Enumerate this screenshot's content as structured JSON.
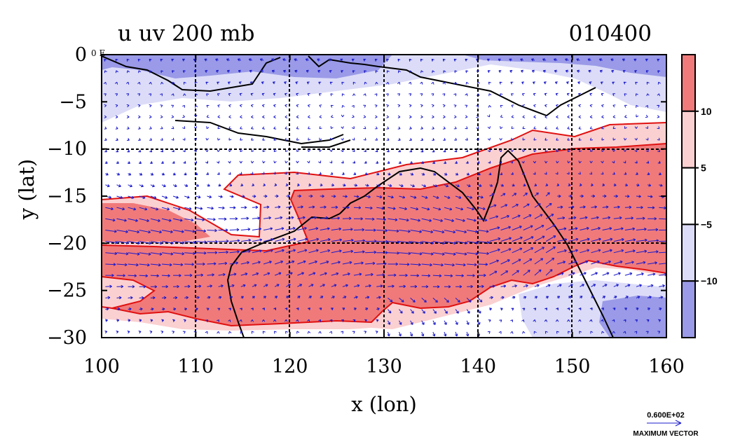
{
  "chart_data": {
    "type": "heatmap",
    "title": "u uv 200 mb",
    "date_label": "010400",
    "xlabel": "x (lon)",
    "ylabel": "y (lat)",
    "xlim": [
      100,
      160
    ],
    "ylim": [
      -30,
      0
    ],
    "x_ticks": [
      100,
      110,
      120,
      130,
      140,
      150,
      160
    ],
    "y_ticks": [
      0,
      -5,
      -10,
      -15,
      -20,
      -25,
      -30
    ],
    "grid": true,
    "colorbar": {
      "levels": [
        -10,
        -5,
        5,
        10
      ],
      "labels": [
        "10",
        "5",
        "-5",
        "-10"
      ],
      "colors": [
        "#f07a7a",
        "#fbd0d0",
        "#ffffff",
        "#dcdcf8",
        "#9a9ae8"
      ]
    },
    "contour_bands": [
      {
        "level": "u > 10",
        "color": "#f07a7a",
        "description": "strong westerly jet band, approx 12S-28S"
      },
      {
        "level": "5 < u < 10",
        "color": "#fbd0d0",
        "description": "jet flanks"
      },
      {
        "level": "-5 < u < 5",
        "color": "#ffffff"
      },
      {
        "level": "-10 < u < -5",
        "color": "#dcdcf8",
        "description": "weak easterlies near equator"
      },
      {
        "level": "u < -10",
        "color": "#9a9ae8",
        "description": "easterlies, 0-3S and SE corner"
      }
    ],
    "vector_color": "#1a1acc",
    "reference_vector": {
      "value": "0.600E+02",
      "label": "MAXIMUM VECTOR"
    },
    "axis_corner_label": "0 E"
  }
}
